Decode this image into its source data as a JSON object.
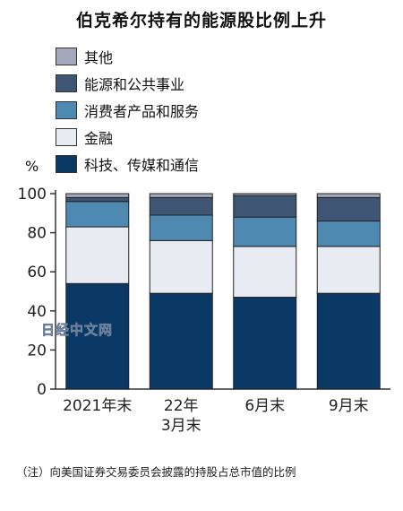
{
  "title": "伯克希尔持有的能源股比例上升",
  "unit": "%",
  "watermark": "日经中文网",
  "note": "（注）向美国证券交易委员会披露的持股占总市值的比例",
  "colors": {
    "other": "#a3a8bc",
    "energy_utilities": "#3e5573",
    "consumer": "#4d89b1",
    "finance": "#e9ebf3",
    "tech": "#0a3965"
  },
  "chart_data": {
    "type": "bar",
    "stacked": true,
    "title": "伯克希尔持有的能源股比例上升",
    "ylabel": "%",
    "ylim": [
      0,
      100
    ],
    "yticks": [
      0,
      20,
      40,
      60,
      80,
      100
    ],
    "categories": [
      [
        "2021年末"
      ],
      [
        "22年",
        "3月末"
      ],
      [
        "6月末"
      ],
      [
        "9月末"
      ]
    ],
    "legend_position": "top-left",
    "series": [
      {
        "name": "科技、传媒和通信",
        "color": "#0a3965",
        "values": [
          54,
          49,
          47,
          49
        ]
      },
      {
        "name": "金融",
        "color": "#e9ebf3",
        "values": [
          29,
          27,
          26,
          24
        ]
      },
      {
        "name": "消费者产品和服务",
        "color": "#4d89b1",
        "values": [
          13,
          13,
          15,
          13
        ]
      },
      {
        "name": "能源和公共事业",
        "color": "#3e5573",
        "values": [
          2,
          9,
          11,
          12
        ]
      },
      {
        "name": "其他",
        "color": "#a3a8bc",
        "values": [
          2,
          2,
          1,
          2
        ]
      }
    ],
    "legend_order": [
      4,
      3,
      2,
      1,
      0
    ]
  }
}
